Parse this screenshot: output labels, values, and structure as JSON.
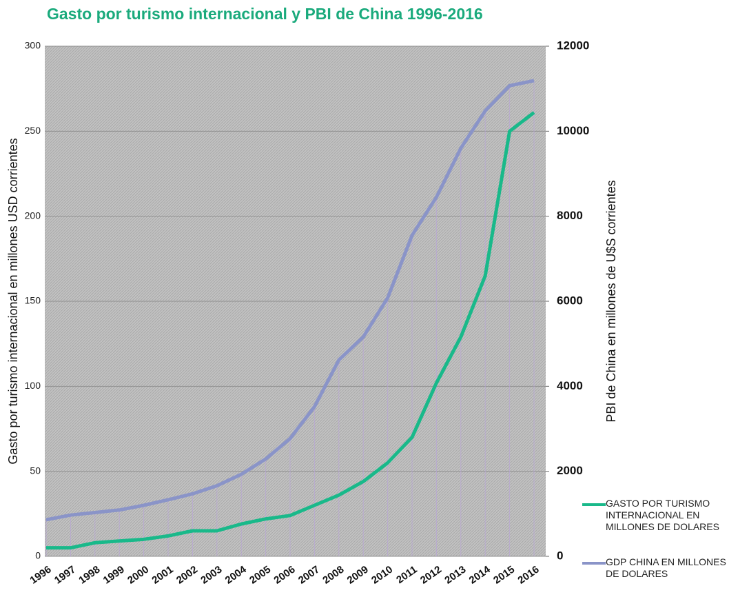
{
  "chart_data": {
    "type": "line",
    "title": "Gasto por turismo internacional y PBI de China 1996-2016",
    "y_label": "Gasto por turismo internacional en millones USD corrientes",
    "y2_label": "PBI de China en millones de U$S corrientes",
    "categories": [
      "1996",
      "1997",
      "1998",
      "1999",
      "2000",
      "2001",
      "2002",
      "2003",
      "2004",
      "2005",
      "2006",
      "2007",
      "2008",
      "2009",
      "2010",
      "2011",
      "2012",
      "2013",
      "2014",
      "2015",
      "2016"
    ],
    "series": [
      {
        "name": "GASTO POR TURISMO INTERNACIONAL EN MILLONES DE DOLARES",
        "color": "#19b98a",
        "axis": "y",
        "values": [
          5,
          5,
          8,
          9,
          10,
          12,
          15,
          15,
          19,
          22,
          24,
          30,
          36,
          44,
          55,
          70,
          102,
          129,
          165,
          250,
          261
        ]
      },
      {
        "name": "GDP CHINA EN MILLONES DE DOLARES",
        "color": "#8a94c8",
        "axis": "y2",
        "values": [
          860,
          970,
          1030,
          1090,
          1200,
          1330,
          1470,
          1660,
          1930,
          2290,
          2770,
          3520,
          4620,
          5160,
          6080,
          7550,
          8450,
          9600,
          10480,
          11070,
          11190
        ]
      }
    ],
    "ylim": [
      0,
      300
    ],
    "yticks": [
      0,
      50,
      100,
      150,
      200,
      250,
      300
    ],
    "y2lim": [
      0,
      12000
    ],
    "y2ticks": [
      0,
      2000,
      4000,
      6000,
      8000,
      10000,
      12000
    ],
    "grid": true,
    "legend": "right"
  }
}
